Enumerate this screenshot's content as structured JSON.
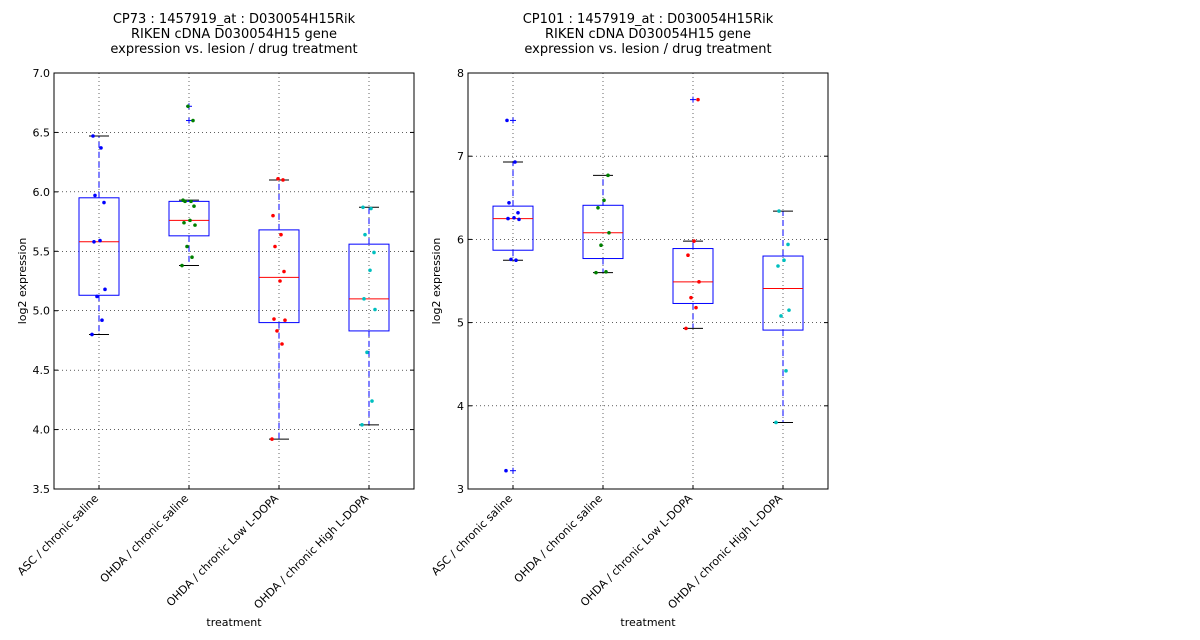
{
  "chart_data": [
    {
      "type": "box",
      "title_lines": [
        "CP73 : 1457919_at : D030054H15Rik",
        "RIKEN cDNA D030054H15 gene",
        "expression vs. lesion / drug treatment"
      ],
      "xlabel": "treatment",
      "ylabel": "log2 expression",
      "ylim": [
        3.5,
        7.0
      ],
      "yticks": [
        "3.5",
        "4.0",
        "4.5",
        "5.0",
        "5.5",
        "6.0",
        "6.5",
        "7.0"
      ],
      "grid": true,
      "categories": [
        "ASC / chronic saline",
        "OHDA / chronic saline",
        "OHDA / chronic Low L-DOPA",
        "OHDA / chronic High L-DOPA"
      ],
      "colors": [
        "#0000ff",
        "#008000",
        "#ff0000",
        "#00bfbf"
      ],
      "boxes": [
        {
          "whisker_low": 4.8,
          "q1": 5.13,
          "median": 5.58,
          "q3": 5.95,
          "whisker_high": 6.47,
          "outliers": []
        },
        {
          "whisker_low": 5.38,
          "q1": 5.63,
          "median": 5.76,
          "q3": 5.92,
          "whisker_high": 5.93,
          "outliers": [
            6.6,
            6.72
          ]
        },
        {
          "whisker_low": 3.92,
          "q1": 4.9,
          "median": 5.28,
          "q3": 5.68,
          "whisker_high": 6.1,
          "outliers": []
        },
        {
          "whisker_low": 4.04,
          "q1": 4.83,
          "median": 5.1,
          "q3": 5.56,
          "whisker_high": 5.87,
          "outliers": []
        }
      ],
      "points": [
        [
          4.8,
          4.92,
          5.12,
          5.18,
          5.58,
          5.59,
          5.91,
          5.97,
          6.37,
          6.47
        ],
        [
          5.38,
          5.45,
          5.54,
          5.72,
          5.74,
          5.76,
          5.88,
          5.92,
          5.92,
          5.93,
          6.6,
          6.72
        ],
        [
          3.92,
          4.72,
          4.83,
          4.92,
          4.93,
          5.25,
          5.33,
          5.54,
          5.64,
          5.8,
          6.1,
          6.11
        ],
        [
          4.04,
          4.24,
          4.65,
          5.01,
          5.1,
          5.34,
          5.49,
          5.64,
          5.86,
          5.87
        ]
      ]
    },
    {
      "type": "box",
      "title_lines": [
        "CP101 : 1457919_at : D030054H15Rik",
        "RIKEN cDNA D030054H15 gene",
        "expression vs. lesion / drug treatment"
      ],
      "xlabel": "treatment",
      "ylabel": "log2 expression",
      "ylim": [
        3,
        8
      ],
      "yticks": [
        "3",
        "4",
        "5",
        "6",
        "7",
        "8"
      ],
      "grid": true,
      "categories": [
        "ASC / chronic saline",
        "OHDA / chronic saline",
        "OHDA / chronic Low L-DOPA",
        "OHDA / chronic High L-DOPA"
      ],
      "colors": [
        "#0000ff",
        "#008000",
        "#ff0000",
        "#00bfbf"
      ],
      "boxes": [
        {
          "whisker_low": 5.75,
          "q1": 5.87,
          "median": 6.25,
          "q3": 6.4,
          "whisker_high": 6.93,
          "outliers": [
            7.43,
            3.22
          ]
        },
        {
          "whisker_low": 5.6,
          "q1": 5.77,
          "median": 6.08,
          "q3": 6.41,
          "whisker_high": 6.77,
          "outliers": []
        },
        {
          "whisker_low": 4.93,
          "q1": 5.23,
          "median": 5.49,
          "q3": 5.89,
          "whisker_high": 5.98,
          "outliers": [
            7.68
          ]
        },
        {
          "whisker_low": 3.8,
          "q1": 4.91,
          "median": 5.41,
          "q3": 5.8,
          "whisker_high": 6.34,
          "outliers": []
        }
      ],
      "points": [
        [
          3.22,
          5.75,
          5.76,
          6.24,
          6.25,
          6.26,
          6.32,
          6.44,
          6.93,
          7.43
        ],
        [
          5.6,
          5.61,
          5.93,
          6.08,
          6.38,
          6.47,
          6.77
        ],
        [
          4.93,
          5.18,
          5.3,
          5.49,
          5.81,
          5.98,
          7.68
        ],
        [
          3.8,
          4.42,
          5.08,
          5.15,
          5.68,
          5.75,
          5.94,
          6.34
        ]
      ]
    }
  ]
}
